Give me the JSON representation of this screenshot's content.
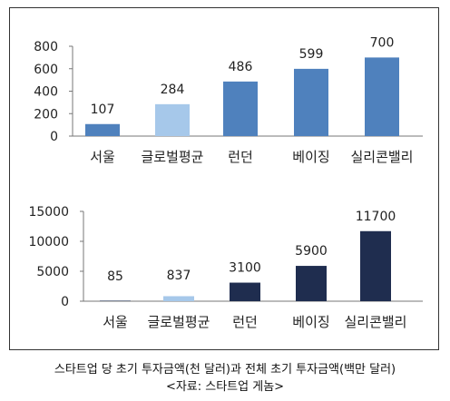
{
  "chart_data": [
    {
      "type": "bar",
      "categories": [
        "서울",
        "글로벌평균",
        "런던",
        "베이징",
        "실리콘밸리"
      ],
      "values": [
        107,
        284,
        486,
        599,
        700
      ],
      "data_labels": [
        "107",
        "284",
        "486",
        "599",
        "700"
      ],
      "ylim": [
        0,
        800
      ],
      "yticks": [
        "0",
        "200",
        "400",
        "600",
        "800"
      ],
      "colors": [
        "#4f81bd",
        "#a6c8ea",
        "#4f81bd",
        "#4f81bd",
        "#4f81bd"
      ],
      "grid": false,
      "title": "",
      "xlabel": "",
      "ylabel": ""
    },
    {
      "type": "bar",
      "categories": [
        "서울",
        "글로벌평균",
        "런던",
        "베이징",
        "실리콘밸리"
      ],
      "values": [
        85,
        837,
        3100,
        5900,
        11700
      ],
      "data_labels": [
        "85",
        "837",
        "3100",
        "5900",
        "11700"
      ],
      "ylim": [
        0,
        15000
      ],
      "yticks": [
        "0",
        "5000",
        "10000",
        "15000"
      ],
      "colors": [
        "#1f2d4f",
        "#a6c8ea",
        "#1f2d4f",
        "#1f2d4f",
        "#1f2d4f"
      ],
      "grid": false,
      "title": "",
      "xlabel": "",
      "ylabel": ""
    }
  ],
  "caption": {
    "line1": "스타트업 당 초기 투자금액(천 달러)과 전체 초기 투자금액(백만 달러)",
    "line2": "<자료: 스타트업 게놈>"
  }
}
